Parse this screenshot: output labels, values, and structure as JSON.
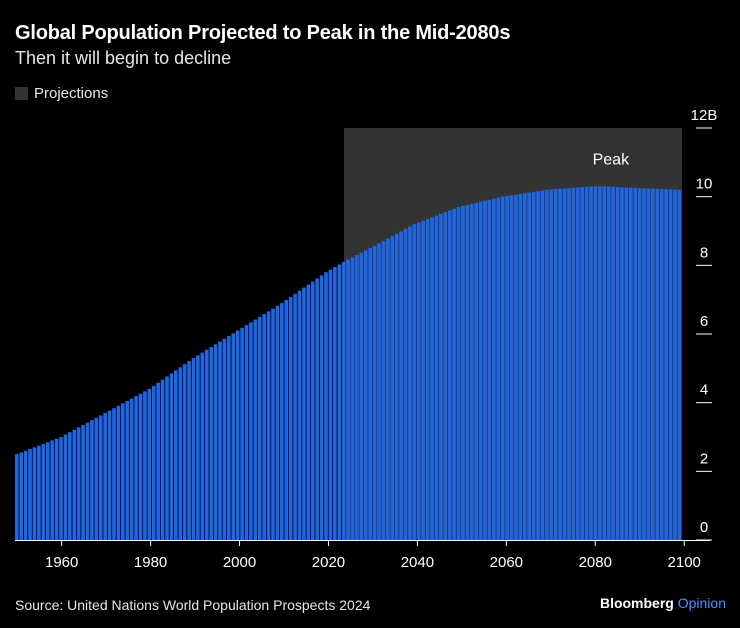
{
  "header": {
    "title": "Global Population Projected to Peak in the Mid-2080s",
    "subtitle": "Then it will begin to decline"
  },
  "legend": {
    "label": "Projections"
  },
  "footer": {
    "source": "Source: United Nations World Population Prospects 2024",
    "brand_main": "Bloomberg",
    "brand_suffix": "Opinion"
  },
  "colors": {
    "bar": "#1f66e5",
    "projection_band": "#333333",
    "background": "#000000",
    "text": "#ffffff"
  },
  "chart_data": {
    "type": "bar",
    "title": "Global Population Projected to Peak in the Mid-2080s",
    "subtitle": "Then it will begin to decline",
    "xlabel": "",
    "ylabel": "",
    "x_range": [
      1950,
      2100
    ],
    "ylim": [
      0,
      12
    ],
    "y_unit": "B",
    "y_ticks": [
      0,
      2,
      4,
      6,
      8,
      10,
      12
    ],
    "y_tick_labels": [
      "0",
      "2",
      "4",
      "6",
      "8",
      "10",
      "12B"
    ],
    "x_ticks": [
      1960,
      1980,
      2000,
      2020,
      2040,
      2060,
      2080,
      2100
    ],
    "projection_start": 2024,
    "annotation": {
      "text": "Peak",
      "year": 2084
    },
    "key_points": [
      {
        "year": 1950,
        "value": 2.5
      },
      {
        "year": 1960,
        "value": 3.0
      },
      {
        "year": 1970,
        "value": 3.7
      },
      {
        "year": 1980,
        "value": 4.4
      },
      {
        "year": 1990,
        "value": 5.3
      },
      {
        "year": 2000,
        "value": 6.1
      },
      {
        "year": 2010,
        "value": 6.9
      },
      {
        "year": 2020,
        "value": 7.8
      },
      {
        "year": 2024,
        "value": 8.1
      },
      {
        "year": 2030,
        "value": 8.5
      },
      {
        "year": 2040,
        "value": 9.2
      },
      {
        "year": 2050,
        "value": 9.7
      },
      {
        "year": 2060,
        "value": 10.0
      },
      {
        "year": 2070,
        "value": 10.2
      },
      {
        "year": 2080,
        "value": 10.3
      },
      {
        "year": 2084,
        "value": 10.3
      },
      {
        "year": 2090,
        "value": 10.25
      },
      {
        "year": 2100,
        "value": 10.2
      }
    ]
  }
}
